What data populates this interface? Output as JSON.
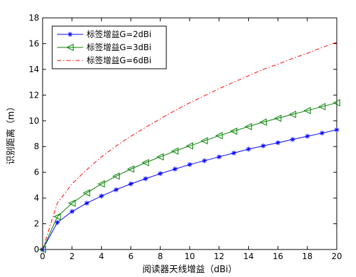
{
  "chart_data": {
    "type": "line",
    "xlabel": "阅读器天线增益（dBi）",
    "ylabel": "识别距离（m）",
    "xlim": [
      0,
      20
    ],
    "ylim": [
      0,
      18
    ],
    "xticks": [
      0,
      2,
      4,
      6,
      8,
      10,
      12,
      14,
      16,
      18,
      20
    ],
    "yticks": [
      0,
      2,
      4,
      6,
      8,
      10,
      12,
      14,
      16,
      18
    ],
    "grid": false,
    "legend_position": "top-left",
    "x": [
      0,
      1,
      2,
      3,
      4,
      5,
      6,
      7,
      8,
      9,
      10,
      11,
      12,
      13,
      14,
      15,
      16,
      17,
      18,
      19,
      20
    ],
    "series": [
      {
        "name": "标签增益G=2dBi",
        "color": "#0000ff",
        "marker": "star",
        "line_style": "solid",
        "values": [
          0,
          2.1,
          2.95,
          3.6,
          4.15,
          4.65,
          5.1,
          5.5,
          5.9,
          6.25,
          6.6,
          6.9,
          7.2,
          7.5,
          7.8,
          8.05,
          8.3,
          8.55,
          8.8,
          9.05,
          9.3
        ]
      },
      {
        "name": "标签增益G=3dBi",
        "color": "#008000",
        "marker": "triangle-left",
        "line_style": "solid",
        "values": [
          0,
          2.55,
          3.6,
          4.4,
          5.1,
          5.7,
          6.25,
          6.75,
          7.2,
          7.65,
          8.05,
          8.45,
          8.85,
          9.2,
          9.55,
          9.9,
          10.2,
          10.5,
          10.8,
          11.1,
          11.4
        ]
      },
      {
        "name": "标签增益G=6dBi",
        "color": "#ff0000",
        "marker": "none",
        "line_style": "dash-dot",
        "values": [
          0,
          3.6,
          5.1,
          6.2,
          7.2,
          8.05,
          8.8,
          9.5,
          10.15,
          10.8,
          11.4,
          11.95,
          12.5,
          13.0,
          13.5,
          14.0,
          14.4,
          14.85,
          15.25,
          15.7,
          16.1
        ]
      }
    ]
  }
}
